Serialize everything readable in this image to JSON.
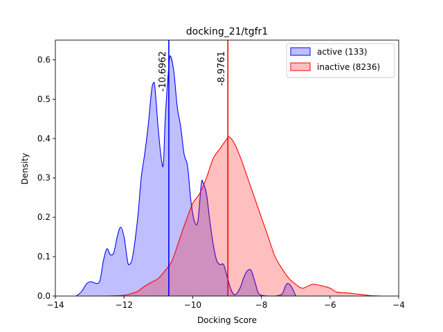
{
  "chart_data": {
    "type": "area",
    "title": "docking_21/tgfr1",
    "xlabel": "Docking Score",
    "ylabel": "Density",
    "xlim": [
      -14,
      -4
    ],
    "ylim": [
      0,
      0.65
    ],
    "xticks": [
      -14,
      -12,
      -10,
      -8,
      -6,
      -4
    ],
    "yticks": [
      0.0,
      0.1,
      0.2,
      0.3,
      0.4,
      0.5,
      0.6
    ],
    "xtick_labels": [
      "−14",
      "−12",
      "−10",
      "−8",
      "−6",
      "−4"
    ],
    "ytick_labels": [
      "0.0",
      "0.1",
      "0.2",
      "0.3",
      "0.4",
      "0.5",
      "0.6"
    ],
    "grid": false,
    "legend_position": "top-right",
    "series": [
      {
        "name": "active (133)",
        "color": "#0000ff",
        "fill": "#0000ff",
        "fill_opacity": 0.25,
        "points": [
          [
            -13.4,
            0.0
          ],
          [
            -13.25,
            0.01
          ],
          [
            -13.1,
            0.03
          ],
          [
            -13.0,
            0.036
          ],
          [
            -12.9,
            0.035
          ],
          [
            -12.8,
            0.032
          ],
          [
            -12.7,
            0.04
          ],
          [
            -12.6,
            0.09
          ],
          [
            -12.5,
            0.12
          ],
          [
            -12.4,
            0.105
          ],
          [
            -12.3,
            0.11
          ],
          [
            -12.2,
            0.15
          ],
          [
            -12.1,
            0.175
          ],
          [
            -12.0,
            0.15
          ],
          [
            -11.9,
            0.09
          ],
          [
            -11.85,
            0.08
          ],
          [
            -11.75,
            0.1
          ],
          [
            -11.6,
            0.2
          ],
          [
            -11.5,
            0.3
          ],
          [
            -11.4,
            0.36
          ],
          [
            -11.3,
            0.43
          ],
          [
            -11.2,
            0.52
          ],
          [
            -11.15,
            0.54
          ],
          [
            -11.1,
            0.53
          ],
          [
            -11.0,
            0.42
          ],
          [
            -10.9,
            0.34
          ],
          [
            -10.85,
            0.34
          ],
          [
            -10.8,
            0.45
          ],
          [
            -10.7,
            0.58
          ],
          [
            -10.65,
            0.61
          ],
          [
            -10.55,
            0.57
          ],
          [
            -10.45,
            0.48
          ],
          [
            -10.35,
            0.43
          ],
          [
            -10.25,
            0.36
          ],
          [
            -10.15,
            0.33
          ],
          [
            -10.05,
            0.24
          ],
          [
            -9.95,
            0.19
          ],
          [
            -9.85,
            0.19
          ],
          [
            -9.75,
            0.285
          ],
          [
            -9.7,
            0.288
          ],
          [
            -9.6,
            0.26
          ],
          [
            -9.5,
            0.19
          ],
          [
            -9.4,
            0.13
          ],
          [
            -9.3,
            0.09
          ],
          [
            -9.2,
            0.08
          ],
          [
            -9.1,
            0.08
          ],
          [
            -9.0,
            0.05
          ],
          [
            -8.9,
            0.02
          ],
          [
            -8.8,
            0.004
          ],
          [
            -8.7,
            0.008
          ],
          [
            -8.6,
            0.025
          ],
          [
            -8.5,
            0.05
          ],
          [
            -8.4,
            0.065
          ],
          [
            -8.3,
            0.065
          ],
          [
            -8.2,
            0.04
          ],
          [
            -8.1,
            0.01
          ],
          [
            -8.0,
            0.002
          ],
          [
            -7.8,
            0.0
          ],
          [
            -7.6,
            0.0
          ],
          [
            -7.4,
            0.005
          ],
          [
            -7.3,
            0.025
          ],
          [
            -7.22,
            0.032
          ],
          [
            -7.1,
            0.02
          ],
          [
            -7.0,
            0.0
          ]
        ]
      },
      {
        "name": "inactive (8236)",
        "color": "#ff0000",
        "fill": "#ff0000",
        "fill_opacity": 0.25,
        "points": [
          [
            -13.0,
            0.0
          ],
          [
            -12.5,
            0.0
          ],
          [
            -12.0,
            0.002
          ],
          [
            -11.8,
            0.006
          ],
          [
            -11.6,
            0.012
          ],
          [
            -11.4,
            0.025
          ],
          [
            -11.2,
            0.035
          ],
          [
            -11.0,
            0.045
          ],
          [
            -10.8,
            0.065
          ],
          [
            -10.6,
            0.09
          ],
          [
            -10.4,
            0.14
          ],
          [
            -10.2,
            0.19
          ],
          [
            -10.0,
            0.235
          ],
          [
            -9.8,
            0.26
          ],
          [
            -9.6,
            0.3
          ],
          [
            -9.4,
            0.35
          ],
          [
            -9.2,
            0.375
          ],
          [
            -9.0,
            0.4
          ],
          [
            -8.95,
            0.405
          ],
          [
            -8.8,
            0.39
          ],
          [
            -8.6,
            0.35
          ],
          [
            -8.4,
            0.3
          ],
          [
            -8.2,
            0.25
          ],
          [
            -8.0,
            0.2
          ],
          [
            -7.8,
            0.15
          ],
          [
            -7.6,
            0.1
          ],
          [
            -7.4,
            0.07
          ],
          [
            -7.2,
            0.045
          ],
          [
            -7.0,
            0.03
          ],
          [
            -6.8,
            0.02
          ],
          [
            -6.5,
            0.03
          ],
          [
            -6.2,
            0.025
          ],
          [
            -6.0,
            0.02
          ],
          [
            -5.8,
            0.01
          ],
          [
            -5.5,
            0.008
          ],
          [
            -5.2,
            0.005
          ],
          [
            -5.0,
            0.003
          ],
          [
            -4.8,
            0.001
          ],
          [
            -4.5,
            0.0
          ]
        ]
      }
    ],
    "vlines": [
      {
        "x": -10.6962,
        "label": "-10.6962",
        "color": "#0000ff"
      },
      {
        "x": -8.9761,
        "label": "-8.9761",
        "color": "#ff0000"
      }
    ]
  }
}
